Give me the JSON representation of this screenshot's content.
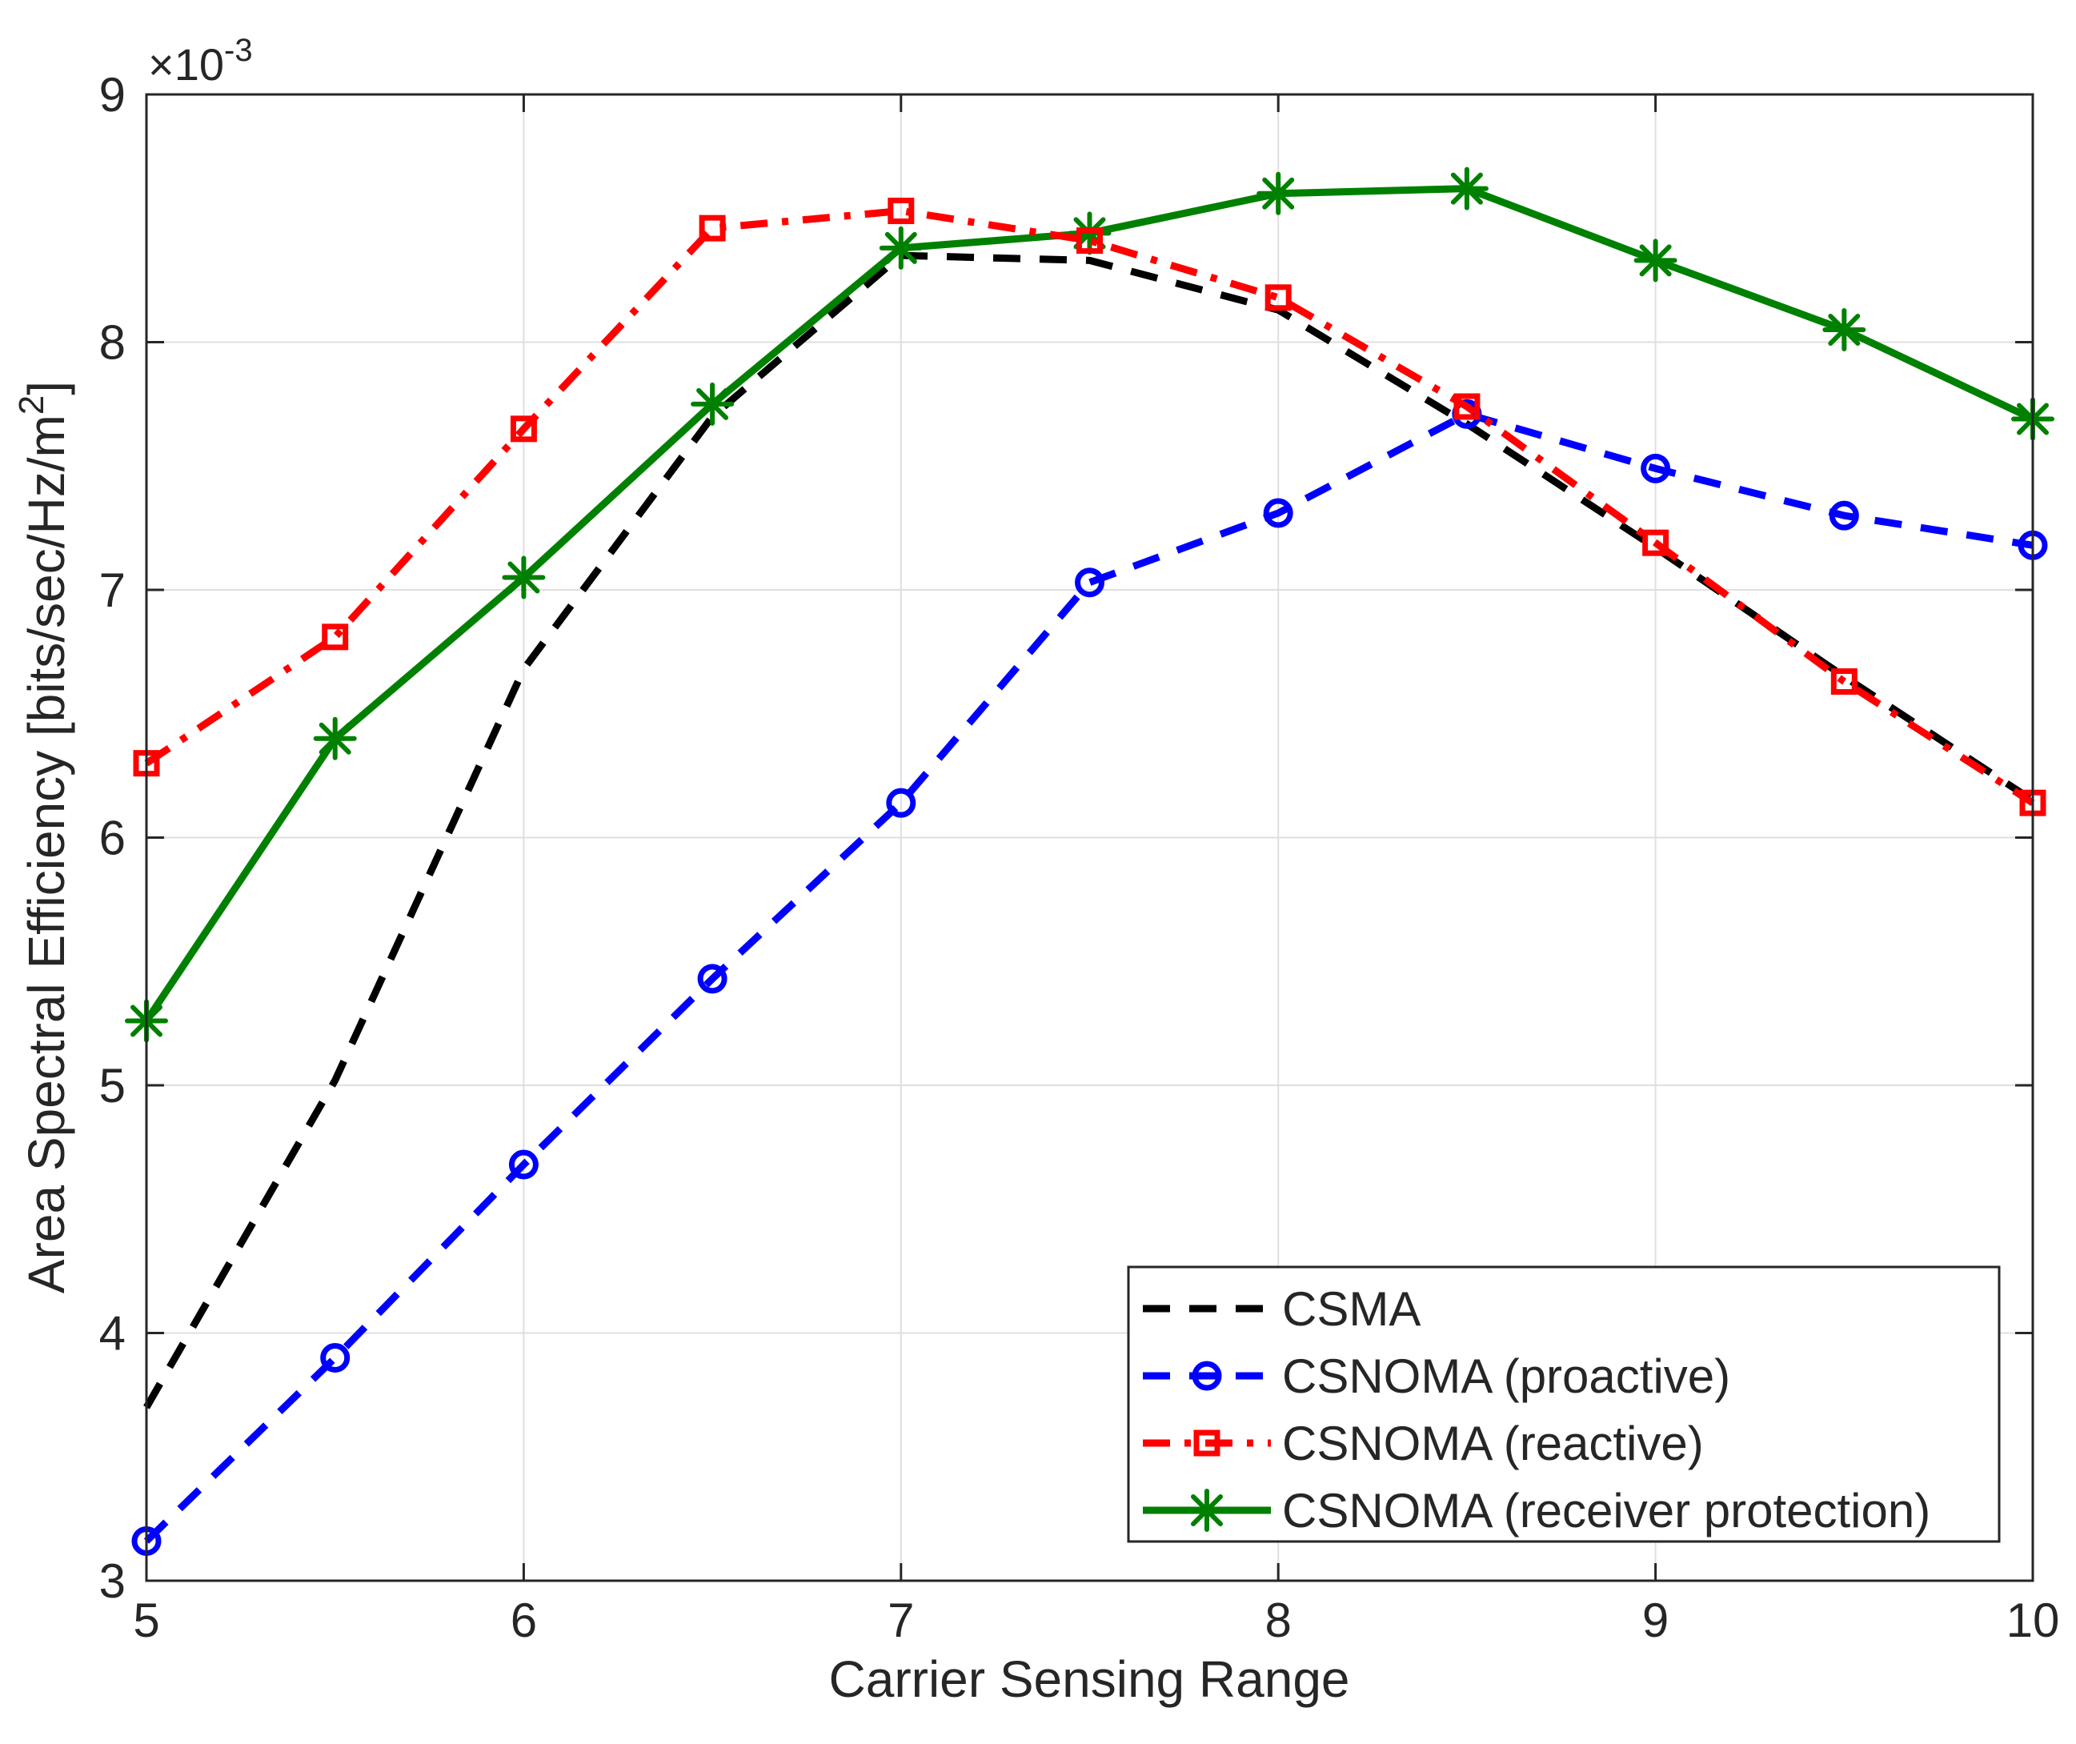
{
  "chart_data": {
    "type": "line",
    "title": "",
    "xlabel": "Carrier Sensing Range",
    "ylabel_main": "Area Spectral Efficiency [bits/sec/Hz/m",
    "ylabel_sup": "2",
    "ylabel_end": "]",
    "y_exponent_base": "×10",
    "y_exponent_power": "-3",
    "xlim": [
      5,
      10
    ],
    "ylim": [
      3,
      9
    ],
    "x_ticks": [
      5,
      6,
      7,
      8,
      9,
      10
    ],
    "y_ticks": [
      3,
      4,
      5,
      6,
      7,
      8,
      9
    ],
    "grid": true,
    "legend_position": "bottom-right",
    "x": [
      5,
      5.5,
      6,
      6.5,
      7,
      7.5,
      8,
      8.5,
      9,
      9.5,
      10
    ],
    "series": [
      {
        "name": "CSMA",
        "color": "#000000",
        "style": "dashed",
        "marker": "none",
        "values": [
          3.7,
          5.02,
          6.68,
          7.7,
          8.35,
          8.33,
          8.13,
          7.67,
          7.17,
          6.65,
          6.15
        ]
      },
      {
        "name": "CSNOMA (proactive)",
        "color": "#0000ff",
        "style": "dashed",
        "marker": "circle",
        "values": [
          3.16,
          3.9,
          4.68,
          5.43,
          6.14,
          7.03,
          7.31,
          7.71,
          7.49,
          7.3,
          7.18
        ]
      },
      {
        "name": "CSNOMA (reactive)",
        "color": "#ff0000",
        "style": "dashdot",
        "marker": "square",
        "values": [
          6.3,
          6.81,
          7.65,
          8.46,
          8.53,
          8.41,
          8.18,
          7.74,
          7.19,
          6.63,
          6.14
        ]
      },
      {
        "name": "CSNOMA (receiver protection)",
        "color": "#008000",
        "style": "solid",
        "marker": "asterisk",
        "values": [
          5.26,
          6.4,
          7.05,
          7.75,
          8.38,
          8.44,
          8.6,
          8.62,
          8.33,
          8.05,
          7.69
        ]
      }
    ]
  }
}
